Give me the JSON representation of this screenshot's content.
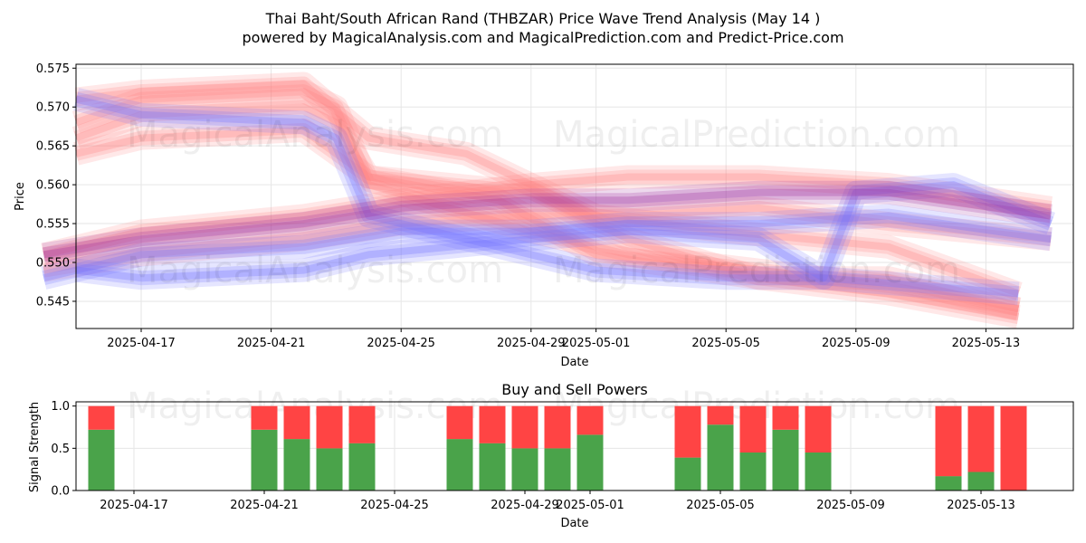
{
  "header": {
    "title_line1": "Thai Baht/South African Rand (THBZAR) Price Wave Trend Analysis (May 14 )",
    "title_line2": "powered by MagicalAnalysis.com and MagicalPrediction.com and Predict-Price.com"
  },
  "watermarks": {
    "left": "MagicalAnalysis.com",
    "right": "MagicalPrediction.com"
  },
  "colors": {
    "sell": "#ff4444",
    "buy": "#4aa34a",
    "red_band": "#ff8080",
    "blue_band": "#7070ff",
    "purple_band": "#9a2a9a"
  },
  "chart_data": [
    {
      "type": "area",
      "title": "",
      "xlabel": "Date",
      "ylabel": "Price",
      "ylim": [
        0.5415,
        0.5755
      ],
      "yticks": [
        "0.545",
        "0.550",
        "0.555",
        "0.560",
        "0.565",
        "0.570",
        "0.575"
      ],
      "xticks": [
        "2025-04-17",
        "2025-04-21",
        "2025-04-25",
        "2025-04-29",
        "2025-05-01",
        "2025-05-05",
        "2025-05-09",
        "2025-05-13"
      ],
      "grid": true,
      "series": [
        {
          "color": "red",
          "x": [
            "2025-04-15",
            "2025-04-17",
            "2025-04-22",
            "2025-04-23",
            "2025-04-24",
            "2025-04-29",
            "2025-05-02",
            "2025-05-06",
            "2025-05-10",
            "2025-05-14"
          ],
          "values": [
            0.568,
            0.571,
            0.572,
            0.57,
            0.56,
            0.554,
            0.551,
            0.549,
            0.547,
            0.544
          ]
        },
        {
          "color": "red",
          "x": [
            "2025-04-15",
            "2025-04-17",
            "2025-04-22",
            "2025-04-23",
            "2025-04-24",
            "2025-04-28",
            "2025-05-01",
            "2025-05-06",
            "2025-05-10",
            "2025-05-14"
          ],
          "values": [
            0.566,
            0.569,
            0.57,
            0.568,
            0.561,
            0.558,
            0.551,
            0.548,
            0.546,
            0.543
          ]
        },
        {
          "color": "red",
          "x": [
            "2025-04-15",
            "2025-04-17",
            "2025-04-22",
            "2025-04-24",
            "2025-04-27",
            "2025-04-29",
            "2025-05-01",
            "2025-05-05",
            "2025-05-10",
            "2025-05-14"
          ],
          "values": [
            0.571,
            0.572,
            0.573,
            0.566,
            0.564,
            0.56,
            0.556,
            0.554,
            0.552,
            0.546
          ]
        },
        {
          "color": "red",
          "x": [
            "2025-04-15",
            "2025-04-17",
            "2025-04-22",
            "2025-04-24",
            "2025-04-29",
            "2025-05-02",
            "2025-05-06",
            "2025-05-10",
            "2025-05-14"
          ],
          "values": [
            0.564,
            0.566,
            0.567,
            0.561,
            0.559,
            0.553,
            0.548,
            0.548,
            0.544
          ]
        },
        {
          "color": "red",
          "x": [
            "2025-04-14",
            "2025-04-17",
            "2025-04-22",
            "2025-04-25",
            "2025-04-29",
            "2025-05-02",
            "2025-05-06",
            "2025-05-10",
            "2025-05-15"
          ],
          "values": [
            0.551,
            0.554,
            0.556,
            0.558,
            0.56,
            0.561,
            0.561,
            0.56,
            0.557
          ]
        },
        {
          "color": "red",
          "x": [
            "2025-04-14",
            "2025-04-17",
            "2025-04-22",
            "2025-04-25",
            "2025-04-29",
            "2025-05-02",
            "2025-05-06",
            "2025-05-10",
            "2025-05-15"
          ],
          "values": [
            0.549,
            0.551,
            0.553,
            0.555,
            0.556,
            0.556,
            0.557,
            0.555,
            0.553
          ]
        },
        {
          "color": "blue",
          "x": [
            "2025-04-15",
            "2025-04-17",
            "2025-04-22",
            "2025-04-23",
            "2025-04-24",
            "2025-04-29",
            "2025-05-01",
            "2025-05-05",
            "2025-05-08",
            "2025-05-14"
          ],
          "values": [
            0.571,
            0.569,
            0.568,
            0.566,
            0.556,
            0.551,
            0.549,
            0.548,
            0.548,
            0.546
          ]
        },
        {
          "color": "blue",
          "x": [
            "2025-04-15",
            "2025-04-17",
            "2025-04-22",
            "2025-04-24",
            "2025-04-29",
            "2025-05-02",
            "2025-05-06",
            "2025-05-08",
            "2025-05-09",
            "2025-05-12",
            "2025-05-15"
          ],
          "values": [
            0.549,
            0.548,
            0.549,
            0.551,
            0.553,
            0.554,
            0.553,
            0.548,
            0.559,
            0.56,
            0.555
          ]
        },
        {
          "color": "blue",
          "x": [
            "2025-04-14",
            "2025-04-17",
            "2025-04-22",
            "2025-04-25",
            "2025-04-29",
            "2025-05-02",
            "2025-05-06",
            "2025-05-10",
            "2025-05-15"
          ],
          "values": [
            0.548,
            0.551,
            0.552,
            0.554,
            0.554,
            0.555,
            0.555,
            0.556,
            0.553
          ]
        },
        {
          "color": "purple",
          "x": [
            "2025-04-14",
            "2025-04-17",
            "2025-04-22",
            "2025-04-25",
            "2025-04-29",
            "2025-05-02",
            "2025-05-06",
            "2025-05-10",
            "2025-05-15"
          ],
          "values": [
            0.551,
            0.553,
            0.555,
            0.557,
            0.558,
            0.558,
            0.559,
            0.559,
            0.556
          ]
        }
      ]
    },
    {
      "type": "bar",
      "title": "Buy and Sell Powers",
      "xlabel": "Date",
      "ylabel": "Signal Strength",
      "ylim": [
        0,
        1.05
      ],
      "yticks": [
        "0.0",
        "0.5",
        "1.0"
      ],
      "xticks": [
        "2025-04-17",
        "2025-04-21",
        "2025-04-25",
        "2025-04-29",
        "2025-05-01",
        "2025-05-05",
        "2025-05-09",
        "2025-05-13"
      ],
      "grid": true,
      "categories": [
        "2025-04-16",
        "2025-04-21",
        "2025-04-22",
        "2025-04-23",
        "2025-04-24",
        "2025-04-27",
        "2025-04-28",
        "2025-04-29",
        "2025-04-30",
        "2025-05-01",
        "2025-05-04",
        "2025-05-05",
        "2025-05-06",
        "2025-05-07",
        "2025-05-08",
        "2025-05-12",
        "2025-05-13",
        "2025-05-14"
      ],
      "series": [
        {
          "name": "",
          "values": [
            0.72,
            0.72,
            0.61,
            0.5,
            0.56,
            0.61,
            0.56,
            0.5,
            0.5,
            0.66,
            0.39,
            0.78,
            0.45,
            0.72,
            0.45,
            0.17,
            0.22,
            0.0
          ]
        },
        {
          "name": "",
          "values": [
            0.28,
            0.28,
            0.39,
            0.5,
            0.44,
            0.39,
            0.44,
            0.5,
            0.5,
            0.34,
            0.61,
            0.22,
            0.55,
            0.28,
            0.55,
            0.83,
            0.78,
            1.0
          ]
        }
      ]
    }
  ]
}
